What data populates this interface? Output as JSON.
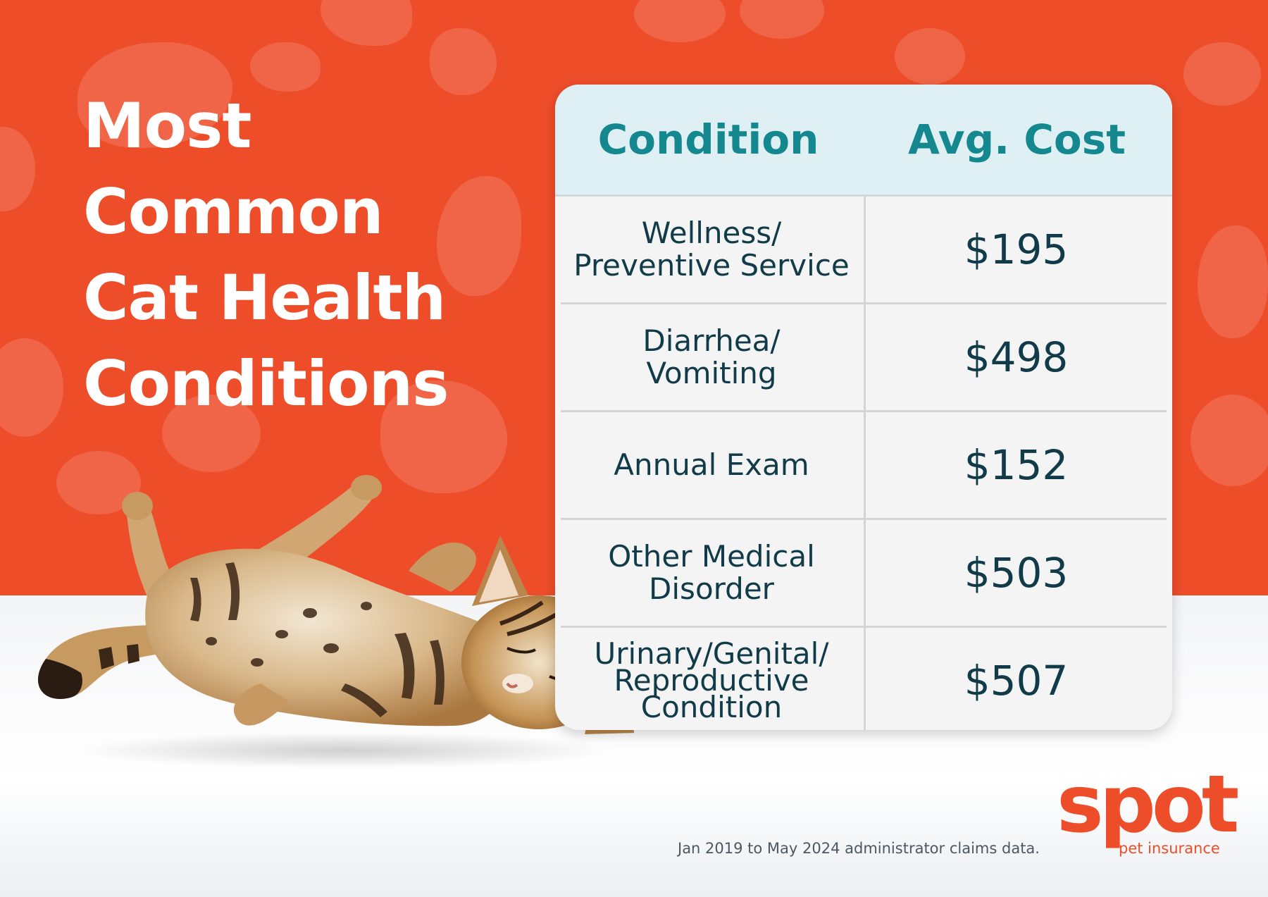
{
  "title": {
    "line1": "Most",
    "line2": "Common",
    "line3": "Cat Health",
    "line4": "Conditions"
  },
  "table": {
    "headers": {
      "condition": "Condition",
      "cost": "Avg. Cost"
    },
    "rows": [
      {
        "condition_lines": [
          "Wellness/",
          "Preventive Service"
        ],
        "cost": "$195"
      },
      {
        "condition_lines": [
          "Diarrhea/",
          "Vomiting"
        ],
        "cost": "$498"
      },
      {
        "condition_lines": [
          "Annual Exam"
        ],
        "cost": "$152"
      },
      {
        "condition_lines": [
          "Other Medical",
          "Disorder"
        ],
        "cost": "$503"
      },
      {
        "condition_lines": [
          "Urinary/Genital/",
          "Reproductive",
          "Condition"
        ],
        "cost": "$507"
      }
    ]
  },
  "footnote": "Jan 2019 to May 2024 administrator claims data.",
  "logo": {
    "word": "spot",
    "tagline": "pet insurance"
  },
  "colors": {
    "brand_orange": "#ee4d2a",
    "header_teal": "#14878f",
    "header_bg": "#dff0f5",
    "body_text": "#113b48"
  }
}
